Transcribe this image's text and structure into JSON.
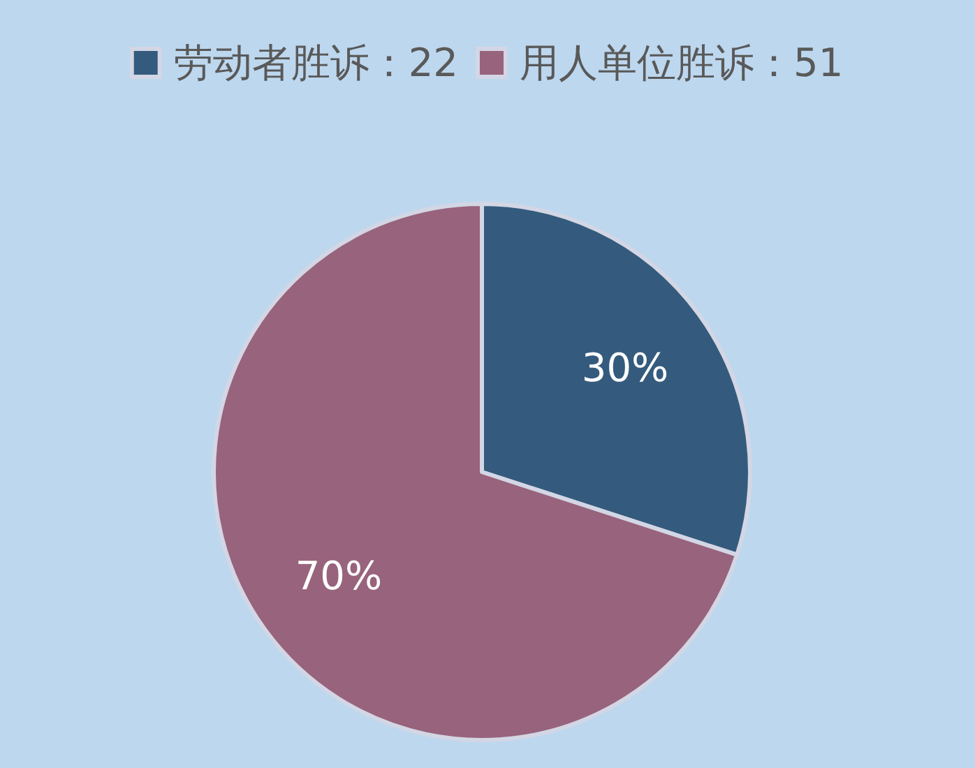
{
  "chart_data": {
    "type": "pie",
    "categories": [
      "劳动者胜诉：22",
      "用人单位胜诉：51"
    ],
    "values": [
      30,
      70
    ],
    "colors": [
      "#345b7d",
      "#98637c"
    ],
    "value_labels": [
      "30%",
      "70%"
    ],
    "legend": "top"
  }
}
